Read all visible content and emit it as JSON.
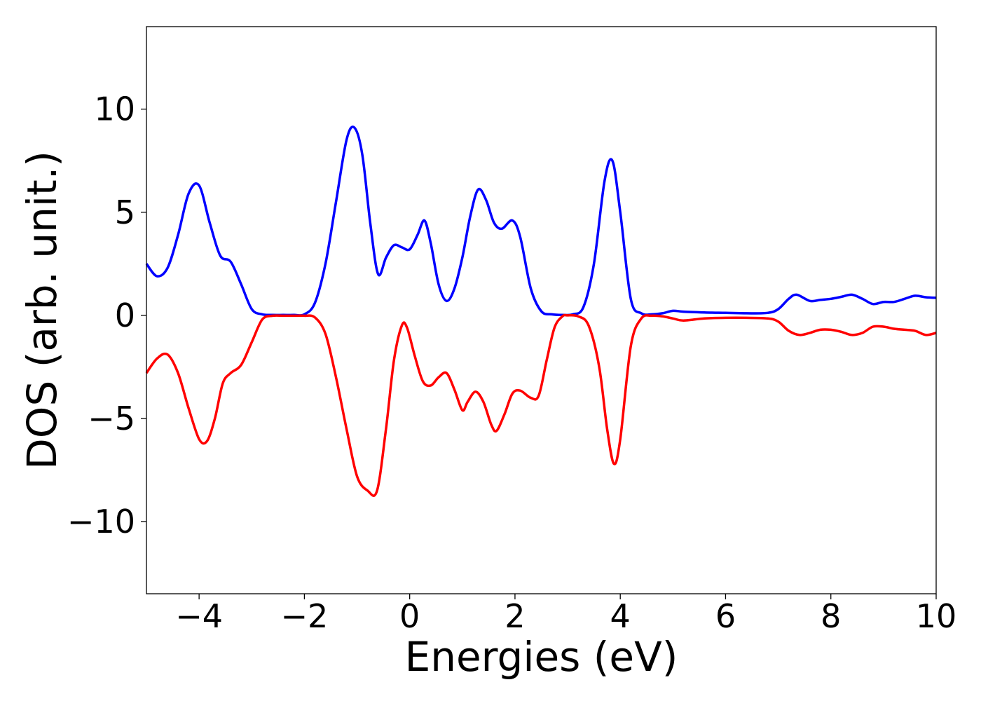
{
  "chart_data": {
    "type": "line",
    "xlabel": "Energies (eV)",
    "ylabel": "DOS (arb. unit.)",
    "xlim": [
      -5,
      10
    ],
    "ylim": [
      -13.5,
      14
    ],
    "grid": false,
    "legend": "none",
    "xticks": [
      -4,
      -2,
      0,
      2,
      4,
      6,
      8,
      10
    ],
    "xtick_labels": [
      "−4",
      "−2",
      "0",
      "2",
      "4",
      "6",
      "8",
      "10"
    ],
    "yticks": [
      10,
      5,
      0,
      -5,
      -10
    ],
    "ytick_labels": [
      "10",
      "5",
      "0",
      "−5",
      "−10"
    ],
    "series": [
      {
        "color": "#0000ff",
        "x": [
          -5.0,
          -4.8,
          -4.6,
          -4.4,
          -4.2,
          -4.0,
          -3.8,
          -3.6,
          -3.4,
          -3.2,
          -3.0,
          -2.8,
          -2.6,
          -2.4,
          -2.2,
          -2.0,
          -1.8,
          -1.6,
          -1.4,
          -1.2,
          -1.05,
          -0.9,
          -0.75,
          -0.6,
          -0.45,
          -0.3,
          -0.15,
          0.0,
          0.15,
          0.28,
          0.4,
          0.55,
          0.7,
          0.85,
          1.0,
          1.15,
          1.3,
          1.45,
          1.6,
          1.75,
          1.95,
          2.1,
          2.3,
          2.5,
          2.7,
          2.9,
          3.1,
          3.3,
          3.5,
          3.7,
          3.85,
          4.0,
          4.2,
          4.4,
          4.6,
          4.8,
          5.0,
          5.2,
          5.6,
          6.0,
          6.4,
          6.8,
          7.0,
          7.2,
          7.35,
          7.6,
          7.8,
          8.0,
          8.2,
          8.4,
          8.6,
          8.8,
          9.0,
          9.2,
          9.4,
          9.6,
          9.8,
          10.0
        ],
        "y": [
          2.5,
          1.9,
          2.3,
          3.9,
          5.9,
          6.3,
          4.5,
          2.9,
          2.6,
          1.5,
          0.3,
          0.05,
          0.02,
          0.02,
          0.02,
          0.05,
          0.6,
          2.5,
          5.5,
          8.5,
          9.1,
          7.8,
          4.5,
          2.0,
          2.8,
          3.4,
          3.3,
          3.2,
          3.9,
          4.6,
          3.5,
          1.5,
          0.7,
          1.3,
          2.8,
          4.8,
          6.1,
          5.6,
          4.5,
          4.2,
          4.6,
          3.8,
          1.3,
          0.2,
          0.05,
          0.02,
          0.05,
          0.4,
          2.5,
          6.5,
          7.5,
          5.0,
          0.8,
          0.1,
          0.05,
          0.1,
          0.22,
          0.18,
          0.14,
          0.12,
          0.1,
          0.12,
          0.3,
          0.8,
          1.0,
          0.7,
          0.75,
          0.8,
          0.9,
          1.0,
          0.8,
          0.55,
          0.65,
          0.65,
          0.8,
          0.95,
          0.88,
          0.85
        ]
      },
      {
        "color": "#ff0000",
        "x": [
          -5.0,
          -4.8,
          -4.6,
          -4.4,
          -4.2,
          -4.0,
          -3.85,
          -3.7,
          -3.55,
          -3.4,
          -3.2,
          -3.0,
          -2.8,
          -2.6,
          -2.4,
          -2.2,
          -2.0,
          -1.8,
          -1.6,
          -1.4,
          -1.2,
          -1.0,
          -0.8,
          -0.62,
          -0.45,
          -0.3,
          -0.15,
          -0.05,
          0.1,
          0.25,
          0.4,
          0.55,
          0.7,
          0.85,
          1.0,
          1.1,
          1.25,
          1.4,
          1.55,
          1.65,
          1.8,
          1.95,
          2.1,
          2.3,
          2.45,
          2.6,
          2.75,
          2.9,
          3.0,
          3.2,
          3.4,
          3.6,
          3.75,
          3.88,
          4.0,
          4.2,
          4.4,
          4.6,
          4.8,
          5.0,
          5.2,
          5.6,
          6.0,
          6.4,
          6.8,
          7.0,
          7.2,
          7.4,
          7.6,
          7.8,
          8.0,
          8.2,
          8.4,
          8.6,
          8.8,
          9.0,
          9.2,
          9.4,
          9.6,
          9.8,
          10.0
        ],
        "y": [
          -2.8,
          -2.1,
          -1.9,
          -2.8,
          -4.5,
          -6.0,
          -6.1,
          -5.0,
          -3.3,
          -2.8,
          -2.4,
          -1.3,
          -0.2,
          -0.02,
          -0.02,
          -0.02,
          -0.02,
          -0.1,
          -0.9,
          -3.0,
          -5.5,
          -7.8,
          -8.5,
          -8.5,
          -5.5,
          -2.2,
          -0.5,
          -0.6,
          -2.0,
          -3.2,
          -3.4,
          -3.0,
          -2.8,
          -3.6,
          -4.6,
          -4.2,
          -3.7,
          -4.2,
          -5.3,
          -5.6,
          -4.8,
          -3.8,
          -3.65,
          -4.0,
          -3.9,
          -2.2,
          -0.6,
          -0.05,
          0.0,
          -0.05,
          -0.5,
          -2.5,
          -5.5,
          -7.2,
          -6.0,
          -1.5,
          -0.15,
          -0.02,
          -0.05,
          -0.15,
          -0.25,
          -0.15,
          -0.12,
          -0.12,
          -0.15,
          -0.3,
          -0.75,
          -0.95,
          -0.85,
          -0.7,
          -0.7,
          -0.8,
          -0.95,
          -0.85,
          -0.55,
          -0.55,
          -0.65,
          -0.7,
          -0.75,
          -0.95,
          -0.85
        ]
      }
    ]
  }
}
